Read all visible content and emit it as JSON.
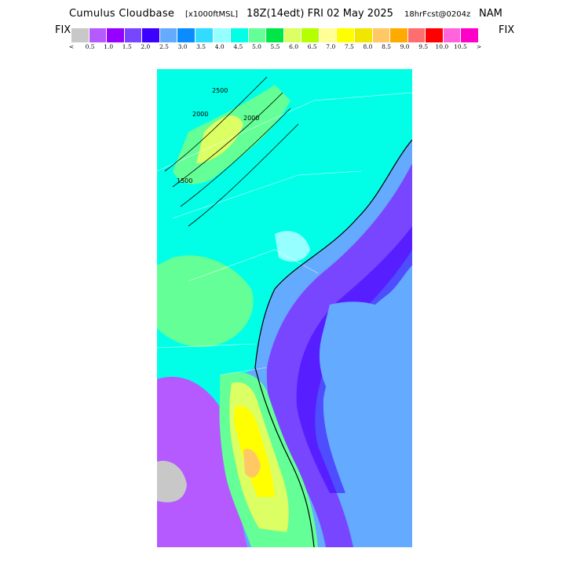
{
  "header": {
    "title": "Cumulus Cloudbase",
    "units": "[x1000ftMSL]",
    "valid": "18Z(14edt) FRI 02 May 2025",
    "forecast": "18hrFcst@0204z",
    "model": "NAM",
    "fix_left": "FIX",
    "fix_right": "FIX"
  },
  "legend": {
    "colors": [
      "#c8c8c8",
      "#b45aff",
      "#9600ff",
      "#7846ff",
      "#3c00ff",
      "#64aaff",
      "#0a8cff",
      "#32dcff",
      "#96ffff",
      "#00ffe6",
      "#64ff96",
      "#00e646",
      "#dcff64",
      "#b4ff00",
      "#ffff96",
      "#ffff00",
      "#f0e600",
      "#ffc864",
      "#ffaa00",
      "#ff6e6e",
      "#ff0000",
      "#ff64dc",
      "#ff00c8"
    ],
    "tick_labels": [
      "<",
      "0.5",
      "1.0",
      "1.5",
      "2.0",
      "2.5",
      "3.0",
      "3.5",
      "4.0",
      "4.5",
      "5.0",
      "5.5",
      "6.0",
      "6.5",
      "7.0",
      "7.5",
      "8.0",
      "8.5",
      "9.0",
      "9.5",
      "10.0",
      "10.5",
      ">"
    ]
  },
  "map": {
    "contour_labels": [
      "2500",
      "2000",
      "2000",
      "1500"
    ]
  }
}
